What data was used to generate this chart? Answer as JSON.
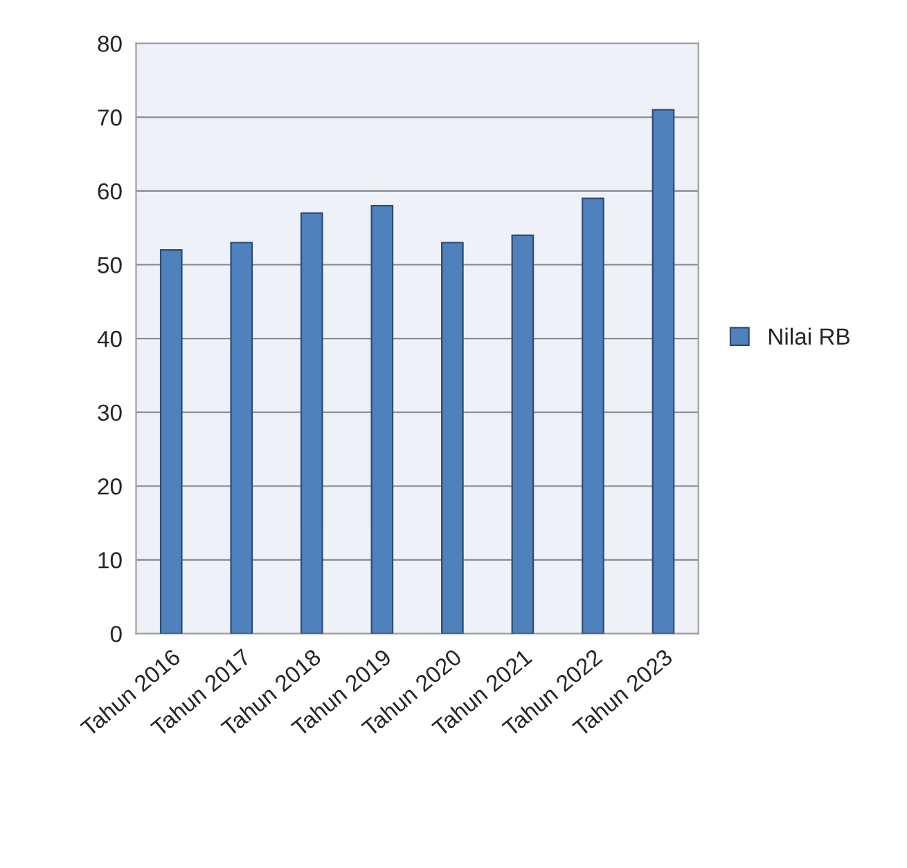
{
  "chart_data": {
    "type": "bar",
    "categories": [
      "Tahun 2016",
      "Tahun 2017",
      "Tahun 2018",
      "Tahun 2019",
      "Tahun 2020",
      "Tahun 2021",
      "Tahun 2022",
      "Tahun 2023"
    ],
    "series": [
      {
        "name": "Nilai RB",
        "color": "#4f81bd",
        "values": [
          52,
          53,
          57,
          58,
          53,
          54,
          59,
          71
        ]
      }
    ],
    "ylim": [
      0,
      80
    ],
    "yticks": [
      0,
      10,
      20,
      30,
      40,
      50,
      60,
      70,
      80
    ],
    "grid": "y",
    "legend": "right"
  }
}
